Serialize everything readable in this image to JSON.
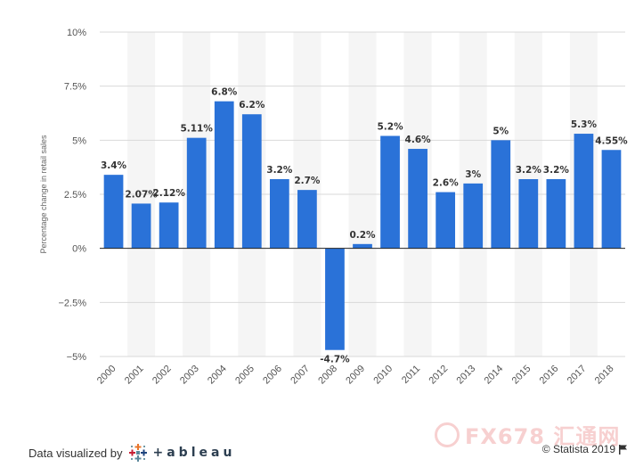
{
  "chart_data": {
    "type": "bar",
    "categories": [
      "2000",
      "2001",
      "2002",
      "2003",
      "2004",
      "2005",
      "2006",
      "2007",
      "2008",
      "2009",
      "2010",
      "2011",
      "2012",
      "2013",
      "2014",
      "2015",
      "2016",
      "2017",
      "2018"
    ],
    "values": [
      3.4,
      2.07,
      2.12,
      5.11,
      6.8,
      6.2,
      3.2,
      2.7,
      -4.7,
      0.2,
      5.2,
      4.6,
      2.6,
      3.0,
      5.0,
      3.2,
      3.2,
      5.3,
      4.55
    ],
    "data_labels": [
      "3.4%",
      "2.07%",
      "2.12%",
      "5.11%",
      "6.8%",
      "6.2%",
      "3.2%",
      "2.7%",
      "-4.7%",
      "0.2%",
      "5.2%",
      "4.6%",
      "2.6%",
      "3%",
      "5%",
      "3.2%",
      "3.2%",
      "5.3%",
      "4.55%"
    ],
    "ylim": [
      -5,
      10
    ],
    "yticks": [
      10,
      7.5,
      5,
      2.5,
      0,
      -2.5,
      -5
    ],
    "ytick_labels": [
      "10%",
      "7.5%",
      "5%",
      "2.5%",
      "0%",
      "−2.5%",
      "−5%"
    ],
    "ylabel": "Percentage change in retail sales",
    "xlabel": "",
    "title": "",
    "bar_color": "#2a72d8",
    "band_color": "#f5f5f5",
    "grid_color": "#d9d9d9"
  },
  "footer": {
    "visualized_by": "Data visualized by",
    "tableau_word": "+ableau",
    "credit": "© Statista 2019",
    "flag_icon": "flag-icon"
  },
  "watermark": {
    "text": "FX678 汇通网"
  }
}
